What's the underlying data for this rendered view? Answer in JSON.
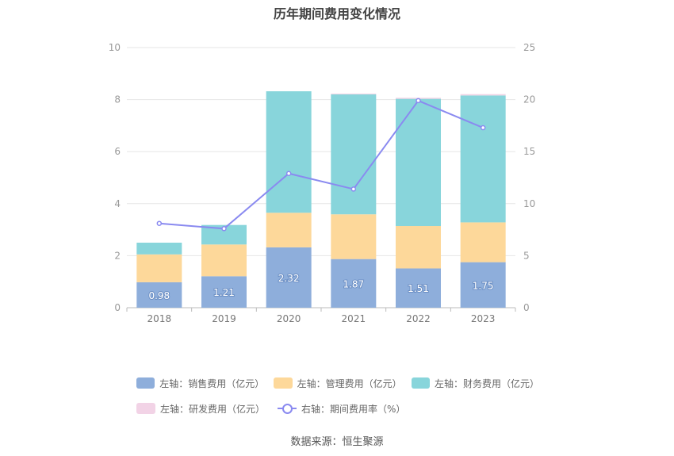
{
  "chart_data": {
    "type": "bar",
    "title": "历年期间费用变化情况",
    "categories": [
      "2018",
      "2019",
      "2020",
      "2021",
      "2022",
      "2023"
    ],
    "stacked": true,
    "left_axis": {
      "ylim": [
        0,
        10
      ],
      "ticks": [
        0,
        2,
        4,
        6,
        8,
        10
      ]
    },
    "right_axis": {
      "ylim": [
        0,
        25
      ],
      "ticks": [
        0,
        5,
        10,
        15,
        20,
        25
      ]
    },
    "grid": true,
    "legend_position": "bottom",
    "series": [
      {
        "name": "左轴：销售费用（亿元）",
        "axis": "left",
        "type": "bar",
        "color": "#8eaedb",
        "values": [
          0.98,
          1.21,
          2.32,
          1.87,
          1.51,
          1.75
        ],
        "labels": [
          "0.98",
          "1.21",
          "2.32",
          "1.87",
          "1.51",
          "1.75"
        ]
      },
      {
        "name": "左轴：管理费用（亿元）",
        "axis": "left",
        "type": "bar",
        "color": "#fdd89a",
        "values": [
          1.07,
          1.22,
          1.33,
          1.72,
          1.63,
          1.53
        ]
      },
      {
        "name": "左轴：财务费用（亿元）",
        "axis": "left",
        "type": "bar",
        "color": "#88d5db",
        "values": [
          0.45,
          0.75,
          4.67,
          4.61,
          4.89,
          4.88
        ]
      },
      {
        "name": "左轴：研发费用（亿元）",
        "axis": "left",
        "type": "bar",
        "color": "#f2d3e6",
        "values": [
          0.0,
          0.0,
          0.0,
          0.03,
          0.04,
          0.05
        ]
      },
      {
        "name": "右轴：期间费用率（%）",
        "axis": "right",
        "type": "line",
        "color": "#8a8af0",
        "values": [
          8.1,
          7.6,
          12.9,
          11.4,
          19.9,
          17.3
        ]
      }
    ]
  },
  "source": "数据来源：恒生聚源"
}
